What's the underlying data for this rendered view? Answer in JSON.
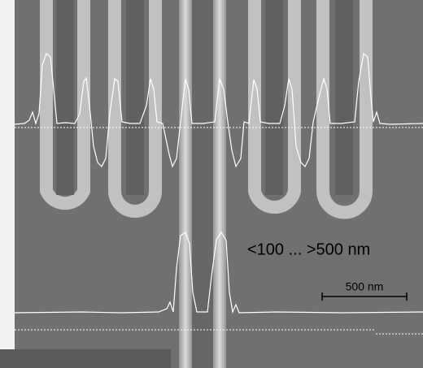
{
  "annotations": {
    "range": "<100 ... >500 nm",
    "scale_bar": "500 nm"
  }
}
